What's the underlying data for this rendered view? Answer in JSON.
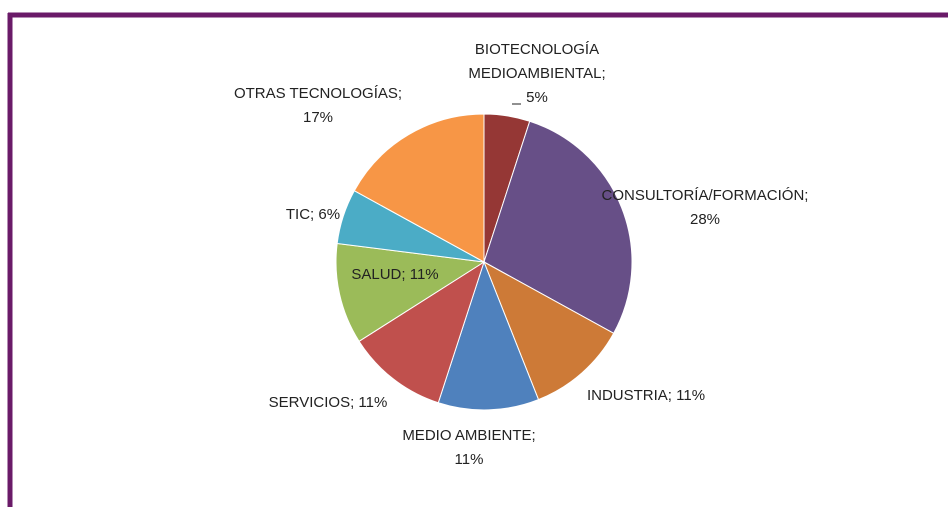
{
  "chart_data": {
    "type": "pie",
    "categories": [
      "BIOTECNOLOGÍA MEDIOAMBIENTAL;",
      "CONSULTORÍA/FORMACIÓN;",
      "INDUSTRIA;",
      "MEDIO AMBIENTE;",
      "SERVICIOS;",
      "SALUD;",
      "TIC;",
      "OTRAS TECNOLOGÍAS;"
    ],
    "values": [
      5,
      28,
      11,
      11,
      11,
      11,
      6,
      17
    ],
    "value_labels": [
      "5%",
      "28%",
      "11%",
      "11%",
      "11%",
      "11%",
      "6%",
      "17%"
    ],
    "colors": [
      "#953735",
      "#674f87",
      "#cd7a37",
      "#4f81bd",
      "#c0504d",
      "#9bbb59",
      "#4bacc6",
      "#f79646"
    ]
  }
}
